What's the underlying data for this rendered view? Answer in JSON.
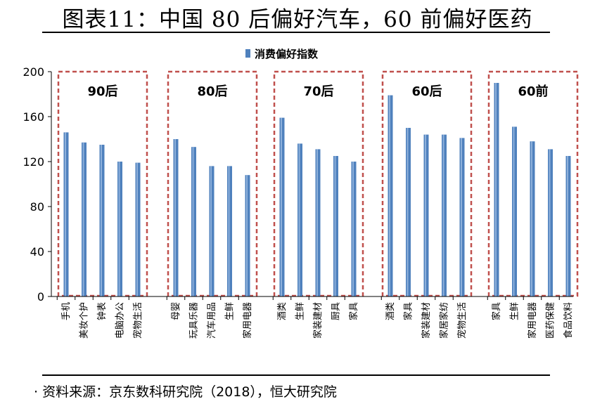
{
  "header": {
    "title": "图表11：中国 80 后偏好汽车，60 前偏好医药"
  },
  "footer": {
    "source": "· 资料来源：京东数科研究院（2018），恒大研究院"
  },
  "colors": {
    "bar": "#4f81bd",
    "bar_highlight": "#9cbce2",
    "box_dash": "#c0504d"
  },
  "chart_data": {
    "type": "bar",
    "legend": [
      "消费偏好指数"
    ],
    "legend_position": "top-center",
    "ylim": [
      0,
      200
    ],
    "yticks": [
      0,
      40,
      80,
      120,
      160,
      200
    ],
    "grid": false,
    "groups": [
      {
        "label": "90后",
        "items": [
          {
            "category": "手机",
            "value": 146
          },
          {
            "category": "美妆个护",
            "value": 137
          },
          {
            "category": "钟表",
            "value": 135
          },
          {
            "category": "电脑办公",
            "value": 120
          },
          {
            "category": "宠物生活",
            "value": 119
          }
        ]
      },
      {
        "label": "80后",
        "items": [
          {
            "category": "母婴",
            "value": 140
          },
          {
            "category": "玩具乐器",
            "value": 133
          },
          {
            "category": "汽车用品",
            "value": 116
          },
          {
            "category": "生鲜",
            "value": 116
          },
          {
            "category": "家用电器",
            "value": 108
          }
        ]
      },
      {
        "label": "70后",
        "items": [
          {
            "category": "酒类",
            "value": 159
          },
          {
            "category": "生鲜",
            "value": 136
          },
          {
            "category": "家装建材",
            "value": 131
          },
          {
            "category": "厨具",
            "value": 125
          },
          {
            "category": "家具",
            "value": 120
          }
        ]
      },
      {
        "label": "60后",
        "items": [
          {
            "category": "酒类",
            "value": 179
          },
          {
            "category": "家具",
            "value": 150
          },
          {
            "category": "家装建材",
            "value": 144
          },
          {
            "category": "家居家纺",
            "value": 144
          },
          {
            "category": "宠物生活",
            "value": 141
          }
        ]
      },
      {
        "label": "60前",
        "items": [
          {
            "category": "家具",
            "value": 190
          },
          {
            "category": "生鲜",
            "value": 151
          },
          {
            "category": "家用电器",
            "value": 138
          },
          {
            "category": "医药保健",
            "value": 131
          },
          {
            "category": "食品饮料",
            "value": 125
          }
        ]
      }
    ]
  }
}
